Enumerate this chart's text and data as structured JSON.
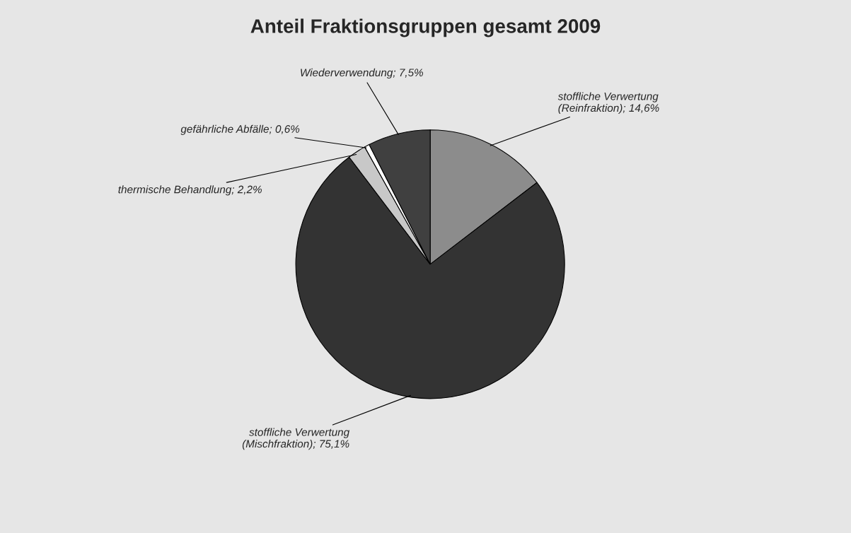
{
  "chart_data": {
    "type": "pie",
    "title": "Anteil Fraktionsgruppen gesamt 2009",
    "categories": [
      "stoffliche Verwertung (Reinfraktion); 14,6%",
      "stoffliche Verwertung (Mischfraktion); 75,1%",
      "thermische Behandlung; 2,2%",
      "gefährliche Abfälle; 0,6%",
      "Wiederverwendung; 7,5%"
    ],
    "values": [
      14.6,
      75.1,
      2.2,
      0.6,
      7.5
    ],
    "colors": [
      "#8c8c8c",
      "#333333",
      "#c8c8c8",
      "#ffffff",
      "#404040"
    ]
  }
}
